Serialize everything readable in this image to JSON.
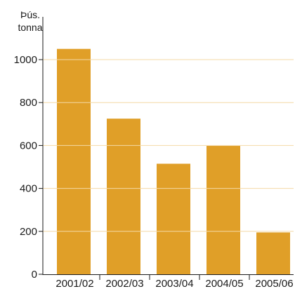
{
  "chart_data": {
    "type": "bar",
    "categories": [
      "2001/02",
      "2002/03",
      "2003/04",
      "2004/05",
      "2005/06"
    ],
    "values": [
      1050,
      725,
      515,
      598,
      195
    ],
    "title": "",
    "xlabel": "",
    "ylabel_line1": "Þús.",
    "ylabel_line2": "tonna",
    "ylim": [
      0,
      1100
    ],
    "yticks": [
      0,
      200,
      400,
      600,
      800,
      1000
    ],
    "ytick_labels": [
      "0",
      "200",
      "400",
      "600",
      "800",
      "1000"
    ],
    "grid": "horizontal lines across bars",
    "bar_color": "#E09F28",
    "grid_color": "#F4D9A6",
    "axis_color": "#1a1a1a"
  }
}
